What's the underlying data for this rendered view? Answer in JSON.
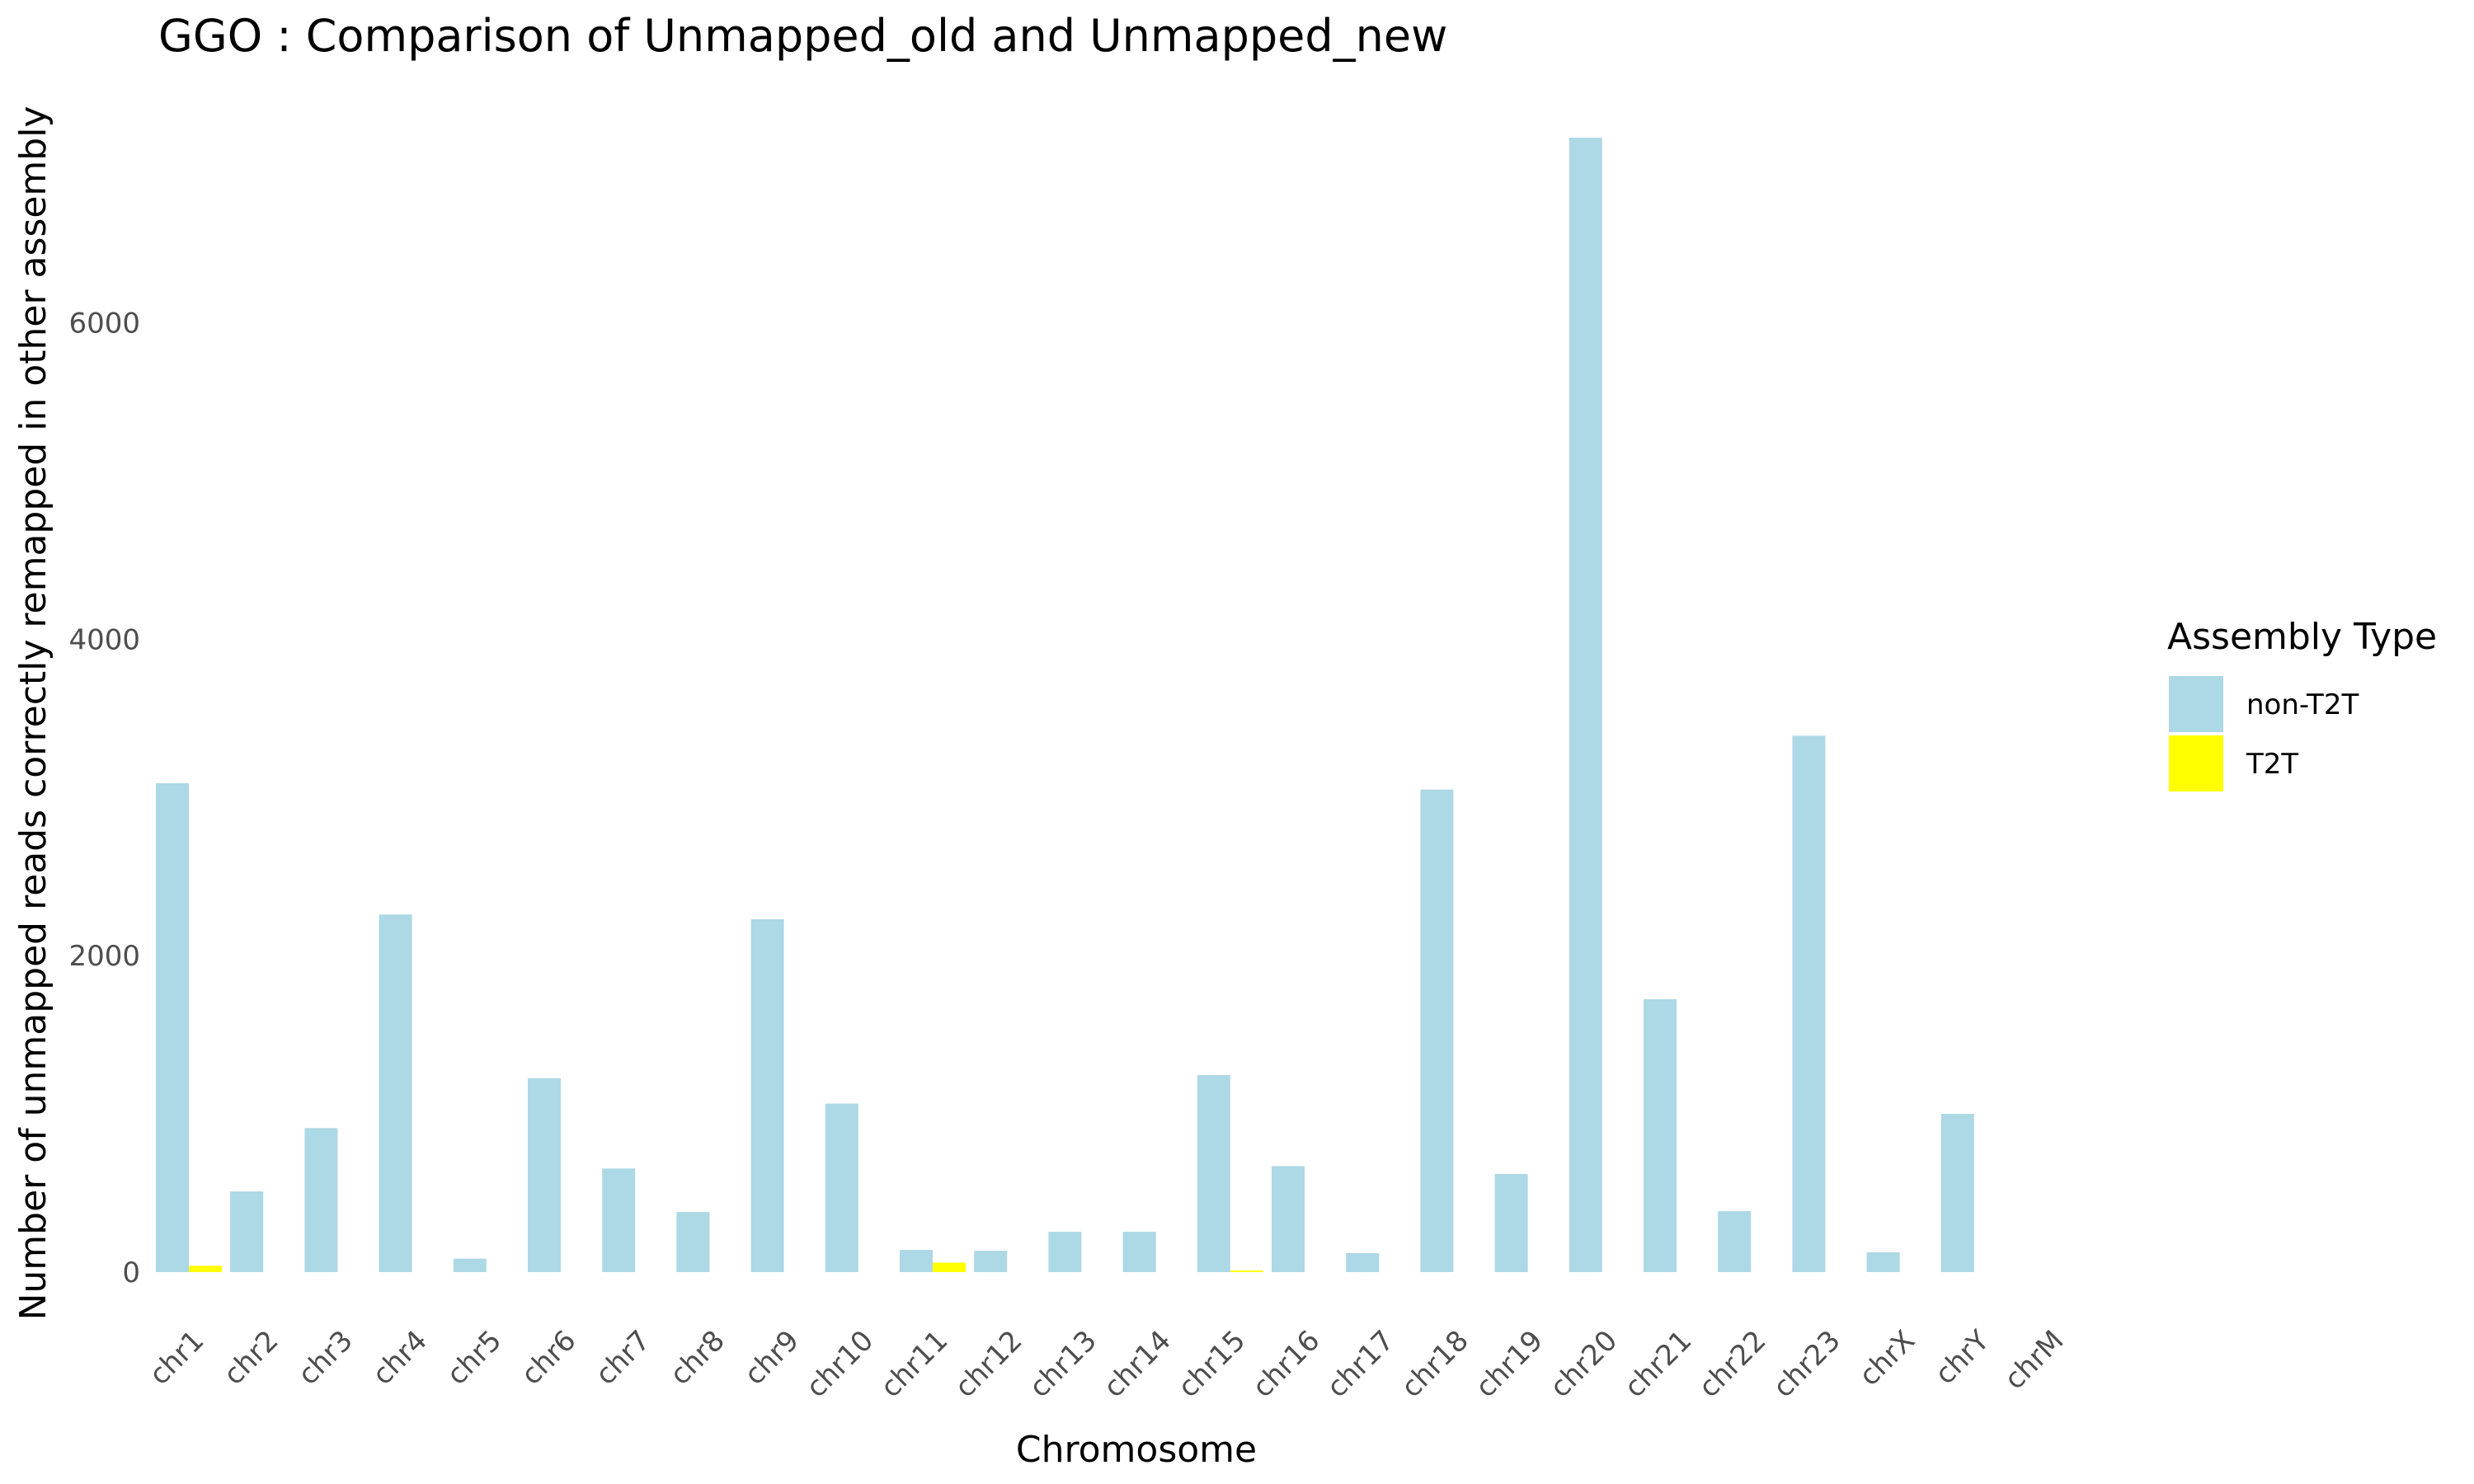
{
  "chart_data": {
    "type": "bar",
    "title": "GGO : Comparison of Unmapped_old and Unmapped_new",
    "xlabel": "Chromosome",
    "ylabel": "Number of unmapped reads correctly remapped in other assembly",
    "categories": [
      "chr1",
      "chr2",
      "chr3",
      "chr4",
      "chr5",
      "chr6",
      "chr7",
      "chr8",
      "chr9",
      "chr10",
      "chr11",
      "chr12",
      "chr13",
      "chr14",
      "chr15",
      "chr16",
      "chr17",
      "chr18",
      "chr19",
      "chr20",
      "chr21",
      "chr22",
      "chr23",
      "chrX",
      "chrY",
      "chrM"
    ],
    "series": [
      {
        "name": "non-T2T",
        "color": "#add8e6",
        "values": [
          3090,
          510,
          910,
          2260,
          85,
          1225,
          655,
          380,
          2230,
          1065,
          140,
          135,
          255,
          255,
          1245,
          670,
          120,
          3050,
          620,
          7170,
          1725,
          385,
          3390,
          125,
          1000,
          0
        ]
      },
      {
        "name": "T2T",
        "color": "#ffff00",
        "values": [
          40,
          0,
          0,
          0,
          0,
          0,
          0,
          0,
          0,
          0,
          60,
          0,
          0,
          0,
          10,
          0,
          0,
          0,
          0,
          0,
          0,
          0,
          0,
          0,
          0,
          0
        ]
      }
    ],
    "yticks": [
      0,
      2000,
      4000,
      6000
    ],
    "ylim": [
      0,
      7170
    ],
    "grid": false,
    "legend": {
      "title": "Assembly Type",
      "position": "right"
    }
  }
}
